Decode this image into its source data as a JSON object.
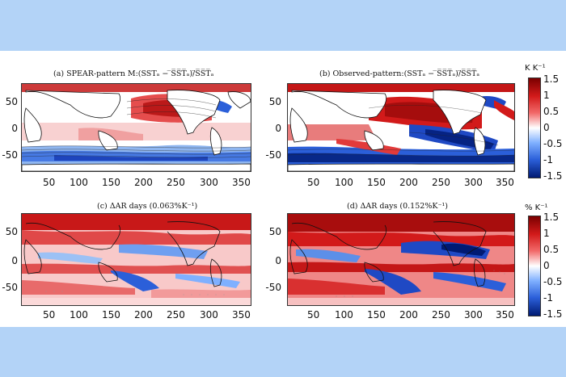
{
  "panels": {
    "a": {
      "title": "(a) SPEAR-pattern M:(SSTₐ − ̅S̅S̅T̅ₐ)/̅S̅S̅T̅ₐ"
    },
    "b": {
      "title": "(b) Observed-pattern:(SSTₐ − ̅S̅S̅T̅ₐ)/̅S̅S̅T̅ₐ"
    },
    "c": {
      "title": "(c) ΔAR days (0.063%K⁻¹)"
    },
    "d": {
      "title": "(d) ΔAR days (0.152%K⁻¹)"
    }
  },
  "axes": {
    "y_ticks": [
      "50",
      "0",
      "-50"
    ],
    "x_ticks": [
      "50",
      "100",
      "150",
      "200",
      "250",
      "300",
      "350"
    ]
  },
  "colorbars": {
    "top": {
      "unit": "K K⁻¹",
      "ticks": [
        "1.5",
        "1",
        "0.5",
        "0",
        "-0.5",
        "-1",
        "-1.5"
      ]
    },
    "bottom": {
      "unit": "% K⁻¹",
      "ticks": [
        "1.5",
        "1",
        "0.5",
        "0",
        "-0.5",
        "-1",
        "-1.5"
      ]
    }
  },
  "colors": {
    "positive": "#d21a1a",
    "negative": "#1f49c4",
    "neutral": "#ffffff",
    "background": "#b3d3f7"
  }
}
